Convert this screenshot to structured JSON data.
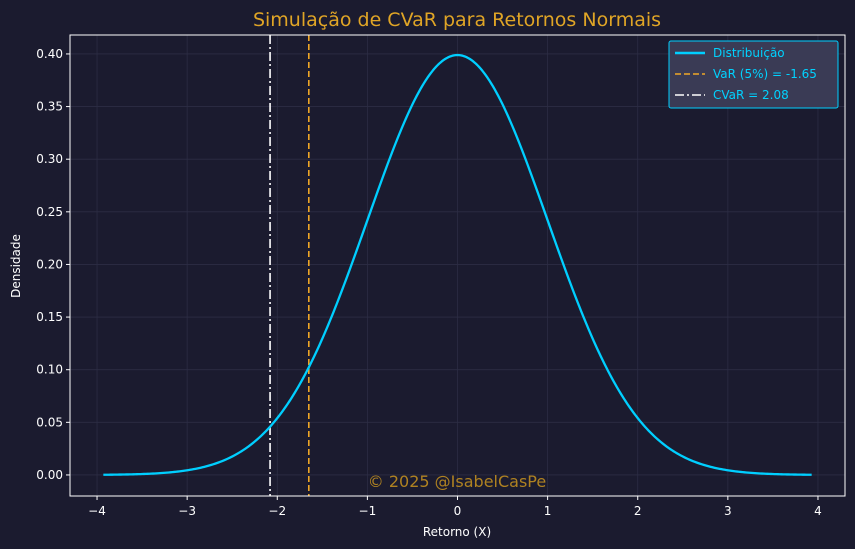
{
  "chart_data": {
    "type": "line",
    "title": "Simulação de CVaR para Retornos Normais",
    "xlabel": "Retorno (X)",
    "ylabel": "Densidade",
    "xlim": [
      -4.3,
      4.3
    ],
    "ylim": [
      -0.02,
      0.418
    ],
    "x_ticks": [
      "−4",
      "−3",
      "−2",
      "−1",
      "0",
      "1",
      "2",
      "3",
      "4"
    ],
    "x_tick_values": [
      -4,
      -3,
      -2,
      -1,
      0,
      1,
      2,
      3,
      4
    ],
    "y_ticks": [
      "0.00",
      "0.05",
      "0.10",
      "0.15",
      "0.20",
      "0.25",
      "0.30",
      "0.35",
      "0.40"
    ],
    "y_tick_values": [
      0,
      0.05,
      0.1,
      0.15,
      0.2,
      0.25,
      0.3,
      0.35,
      0.4
    ],
    "grid": true,
    "legend_position": "top-right",
    "series": [
      {
        "name": "Distribuição",
        "kind": "normal-pdf",
        "mean": 0,
        "std": 1,
        "x_range": [
          -3.93,
          3.93
        ],
        "color": "#00cfff"
      }
    ],
    "vlines": [
      {
        "name": "VaR (5%) = -1.65",
        "x": -1.65,
        "style": "dashed",
        "color": "#f0a727"
      },
      {
        "name": "CVaR = 2.08",
        "x": -2.08,
        "style": "dashdot",
        "color": "#ffffff"
      }
    ],
    "watermark": "© 2025 @IsabelCasPe"
  },
  "colors": {
    "background": "#1b1b2f",
    "plot_background": "#1b1b2f",
    "legend_bg": "#3a3b55",
    "legend_border": "#00cfff",
    "grid": "#2c2d44"
  }
}
